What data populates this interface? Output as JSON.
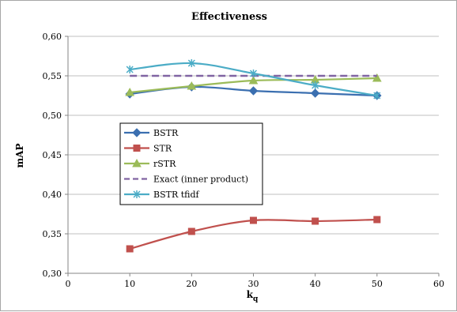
{
  "chart_data": {
    "type": "line",
    "title": "Effectiveness",
    "xlabel": "k",
    "xlabel_subscript": "q",
    "ylabel": "mAP",
    "xlim": [
      0,
      60
    ],
    "ylim": [
      0.3,
      0.6
    ],
    "x_ticks": [
      "0",
      "10",
      "20",
      "30",
      "40",
      "50",
      "60"
    ],
    "y_ticks": [
      "0,30",
      "0,35",
      "0,40",
      "0,45",
      "0,50",
      "0,55",
      "0,60"
    ],
    "grid": "horizontal",
    "legend_position": "left-middle",
    "x": [
      10,
      20,
      30,
      40,
      50
    ],
    "series": [
      {
        "name": "BSTR",
        "color": "#3b6fb0",
        "marker": "diamond",
        "dashed": false,
        "values": [
          0.527,
          0.536,
          0.531,
          0.528,
          0.525
        ]
      },
      {
        "name": "STR",
        "color": "#c0504d",
        "marker": "square",
        "dashed": false,
        "values": [
          0.331,
          0.353,
          0.367,
          0.366,
          0.368
        ]
      },
      {
        "name": "rSTR",
        "color": "#9bbb59",
        "marker": "triangle",
        "dashed": false,
        "values": [
          0.529,
          0.537,
          0.544,
          0.545,
          0.547
        ]
      },
      {
        "name": "Exact (inner product)",
        "color": "#8064a2",
        "marker": "none",
        "dashed": true,
        "values": [
          0.55,
          0.55,
          0.55,
          0.55,
          0.55
        ]
      },
      {
        "name": "BSTR tfidf",
        "color": "#4bacc6",
        "marker": "star",
        "dashed": false,
        "values": [
          0.558,
          0.566,
          0.553,
          0.538,
          0.525
        ]
      }
    ]
  }
}
